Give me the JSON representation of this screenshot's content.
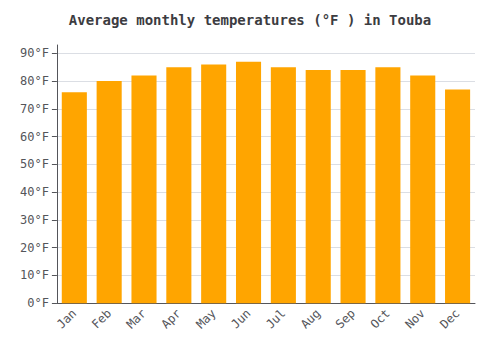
{
  "chart_data": {
    "type": "bar",
    "title": "Average monthly temperatures (°F ) in Touba",
    "categories": [
      "Jan",
      "Feb",
      "Mar",
      "Apr",
      "May",
      "Jun",
      "Jul",
      "Aug",
      "Sep",
      "Oct",
      "Nov",
      "Dec"
    ],
    "values": [
      76,
      80,
      82,
      85,
      86,
      87,
      85,
      84,
      84,
      85,
      82,
      77
    ],
    "color": "#FFA500",
    "ylim": [
      0,
      93
    ],
    "yticks": [
      {
        "value": 0,
        "label": "0°F"
      },
      {
        "value": 10,
        "label": "10°F"
      },
      {
        "value": 20,
        "label": "20°F"
      },
      {
        "value": 30,
        "label": "30°F"
      },
      {
        "value": 40,
        "label": "40°F"
      },
      {
        "value": 50,
        "label": "50°F"
      },
      {
        "value": 60,
        "label": "60°F"
      },
      {
        "value": 70,
        "label": "70°F"
      },
      {
        "value": 80,
        "label": "80°F"
      },
      {
        "value": 90,
        "label": "90°F"
      }
    ],
    "grid": true
  }
}
